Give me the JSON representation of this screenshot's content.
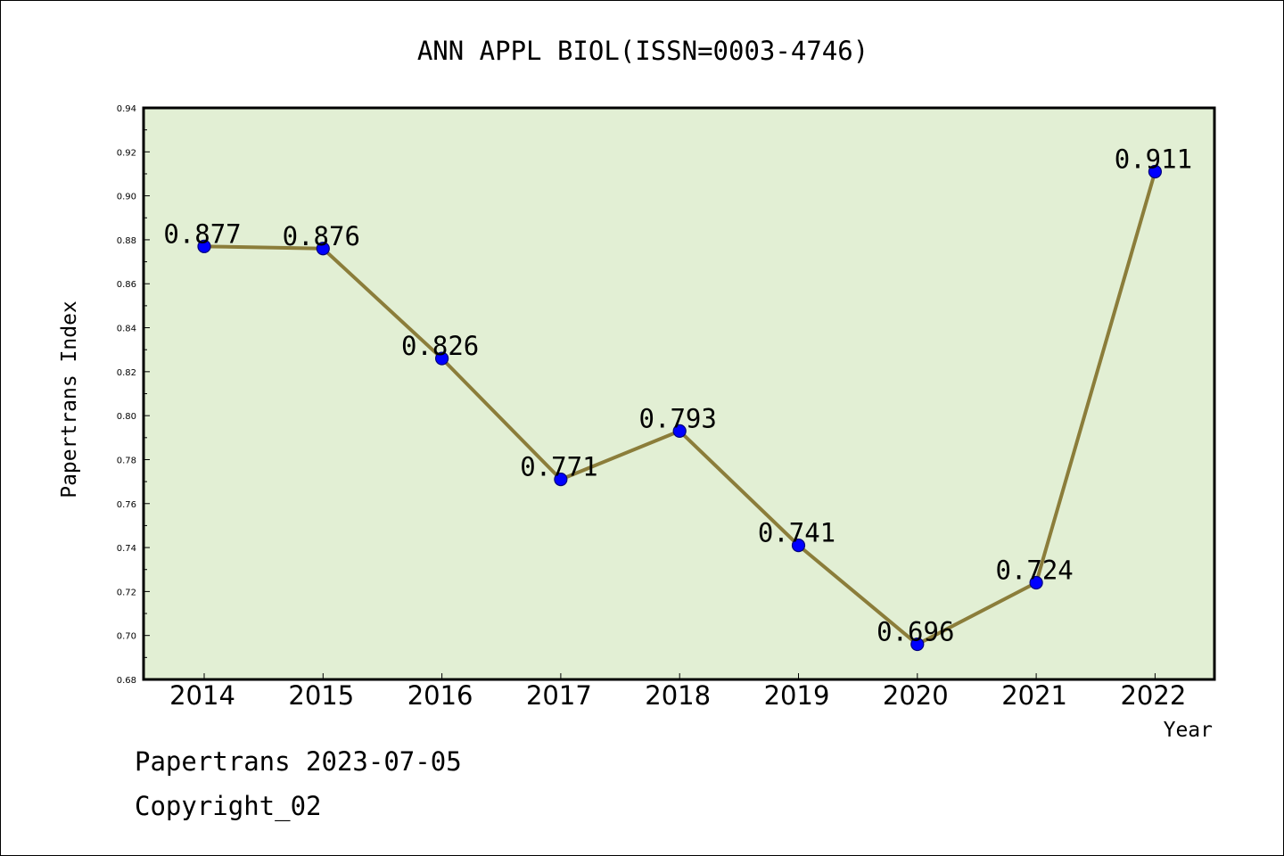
{
  "chart_data": {
    "type": "line",
    "title": "ANN APPL BIOL(ISSN=0003-4746)",
    "xlabel": "Year",
    "ylabel": "Papertrans Index",
    "categories": [
      "2014",
      "2015",
      "2016",
      "2017",
      "2018",
      "2019",
      "2020",
      "2021",
      "2022"
    ],
    "values": [
      0.877,
      0.876,
      0.826,
      0.771,
      0.793,
      0.741,
      0.696,
      0.724,
      0.911
    ],
    "data_labels": [
      "0.877",
      "0.876",
      "0.826",
      "0.771",
      "0.793",
      "0.741",
      "0.696",
      "0.724",
      "0.911"
    ],
    "ylim": [
      0.68,
      0.94
    ],
    "yticks": [
      "0.68",
      "0.70",
      "0.72",
      "0.74",
      "0.76",
      "0.78",
      "0.80",
      "0.82",
      "0.84",
      "0.86",
      "0.88",
      "0.90",
      "0.92",
      "0.94"
    ],
    "grid": false,
    "legend": "none",
    "colors": {
      "plot_background": "#e2efd4",
      "line": "#8b7d3a",
      "marker": "#0000ff",
      "marker_edge": "#00007a",
      "frame": "#000000"
    }
  },
  "footer": {
    "stamp": "Papertrans 2023-07-05",
    "copyright": "Copyright_02"
  }
}
